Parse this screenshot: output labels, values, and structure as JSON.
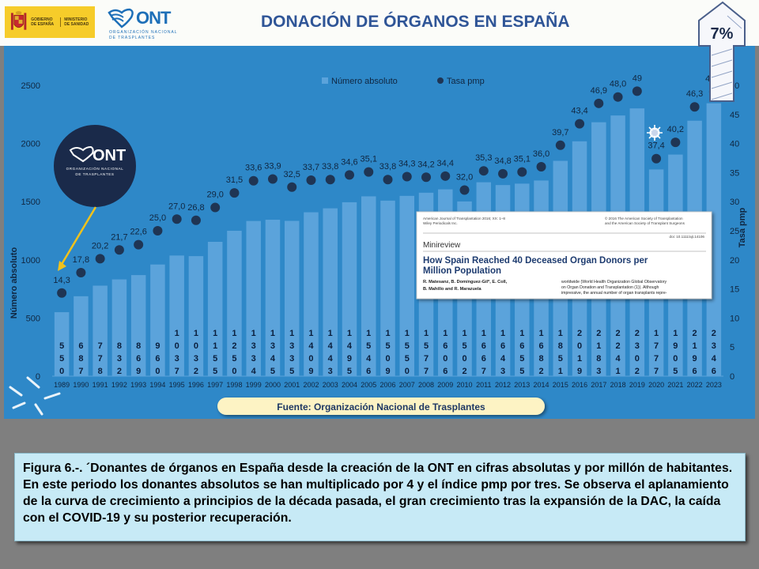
{
  "header": {
    "gov_logo_line1": "GOBIERNO\nDE ESPAÑA",
    "gov_logo_line2": "MINISTERIO\nDE SANIDAD",
    "ont_word": "ONT",
    "ont_sub1": "ORGANIZACIÓN NACIONAL",
    "ont_sub2": "DE TRASPLANTES",
    "title": "DONACIÓN DE ÓRGANOS EN ESPAÑA",
    "badge": "7%"
  },
  "center_logo": {
    "word": "ONT",
    "sub1": "ORGANIZACIÓN NACIONAL",
    "sub2": "DE TRASPLANTES"
  },
  "paper_inset": {
    "journal": "American Journal of Transplantation 2016; XX: 1–8\nWiley Periodicals Inc.",
    "copyright": "© 2016 The American Society of Transplantation\nand the American Society of Transplant Surgeons",
    "doi": "doi: 10.1111/ajt.14106",
    "section": "Minireview",
    "title": "How Spain Reached 40 Deceased Organ Donors per Million Population",
    "authors": "R. Matesanz, B. Domínguez-Gil*, E. Coll,\nB. Mahillo and R. Marazuela",
    "abstract": "worldwide (World Health Organization Global Observatory\non Organ Donation and Transplantation (1)). Although\nimpressive, the annual number of organ transplants repre-"
  },
  "source": "Fuente: Organización Nacional de Trasplantes",
  "caption": "Figura 6.-. ´Donantes de órganos en España desde la creación de la ONT en cifras absolutas y por millón  de habitantes. En este periodo los donantes absolutos se han multiplicado por 4 y el índice pmp por tres. Se observa el aplanamiento de la curva de crecimiento a principios de la década pasada, el gran crecimiento tras la expansión de la DAC, la caída con el COVID-19 y su posterior recuperación.",
  "colors": {
    "panel": "#2e88c8",
    "bar": "#5ba3db",
    "bar_label": "#0a1e3c",
    "dot": "#1f3554",
    "axis_text": "#102640",
    "source_bg": "#fdf3c4",
    "badge_stroke": "#7a8fb8"
  },
  "chart_data": {
    "type": "bar",
    "categories": [
      "1989",
      "1990",
      "1991",
      "1992",
      "1993",
      "1994",
      "1995",
      "1996",
      "1997",
      "1998",
      "1999",
      "2000",
      "2001",
      "2002",
      "2003",
      "2004",
      "2005",
      "2006",
      "2007",
      "2008",
      "2009",
      "2010",
      "2011",
      "2012",
      "2013",
      "2014",
      "2015",
      "2016",
      "2017",
      "2018",
      "2019",
      "2020",
      "2021",
      "2022",
      "2023"
    ],
    "series": [
      {
        "name": "Número absoluto",
        "type": "bar",
        "axis": "left",
        "values": [
          550,
          687,
          778,
          832,
          869,
          960,
          1037,
          1032,
          1155,
          1250,
          1334,
          1345,
          1335,
          1409,
          1443,
          1495,
          1546,
          1509,
          1550,
          1577,
          1606,
          1502,
          1667,
          1643,
          1655,
          1682,
          1851,
          2019,
          2183,
          2241,
          2302,
          1777,
          1905,
          2196,
          2346
        ],
        "labels": [
          "550",
          "687",
          "778",
          "832",
          "869",
          "960",
          "1037",
          "1032",
          "1155",
          "1250",
          "1334",
          "1345",
          "1335",
          "1409",
          "1443",
          "1495",
          "1546",
          "1509",
          "1550",
          "1577",
          "1606",
          "1502",
          "1667",
          "1643",
          "1655",
          "1682",
          "1851",
          "2019",
          "2183",
          "2241",
          "2302",
          "1777",
          "1905",
          "2196",
          "2346"
        ]
      },
      {
        "name": "Tasa pmp",
        "type": "scatter",
        "axis": "right",
        "values": [
          14.3,
          17.8,
          20.2,
          21.7,
          22.6,
          25.0,
          27.0,
          26.8,
          29.0,
          31.5,
          33.6,
          33.9,
          32.5,
          33.7,
          33.8,
          34.6,
          35.1,
          33.8,
          34.3,
          34.2,
          34.4,
          32.0,
          35.3,
          34.8,
          35.1,
          36.0,
          39.7,
          43.4,
          46.9,
          48.0,
          49.0,
          37.4,
          40.2,
          46.3,
          48.9
        ],
        "labels": [
          "14,3",
          "17,8",
          "20,2",
          "21,7",
          "22,6",
          "25,0",
          "27,0",
          "26,8",
          "29,0",
          "31,5",
          "33,6",
          "33,9",
          "32,5",
          "33,7",
          "33,8",
          "34,6",
          "35,1",
          "33,8",
          "34,3",
          "34,2",
          "34,4",
          "32,0",
          "35,3",
          "34,8",
          "35,1",
          "36,0",
          "39,7",
          "43,4",
          "46,9",
          "48,0",
          "49",
          "37,4",
          "40,2",
          "46,3",
          "48,9"
        ]
      }
    ],
    "ylabel": "Número absoluto",
    "y2label": "Tasa pmp",
    "ylim": [
      0,
      2500
    ],
    "y2lim": [
      0,
      50
    ],
    "yticks": [
      "0",
      "500",
      "1000",
      "1500",
      "2000",
      "2500"
    ],
    "y2ticks": [
      "0",
      "5",
      "10",
      "15",
      "20",
      "25",
      "30",
      "35",
      "40",
      "45",
      "50"
    ],
    "legend": "top-center",
    "grid": false
  }
}
